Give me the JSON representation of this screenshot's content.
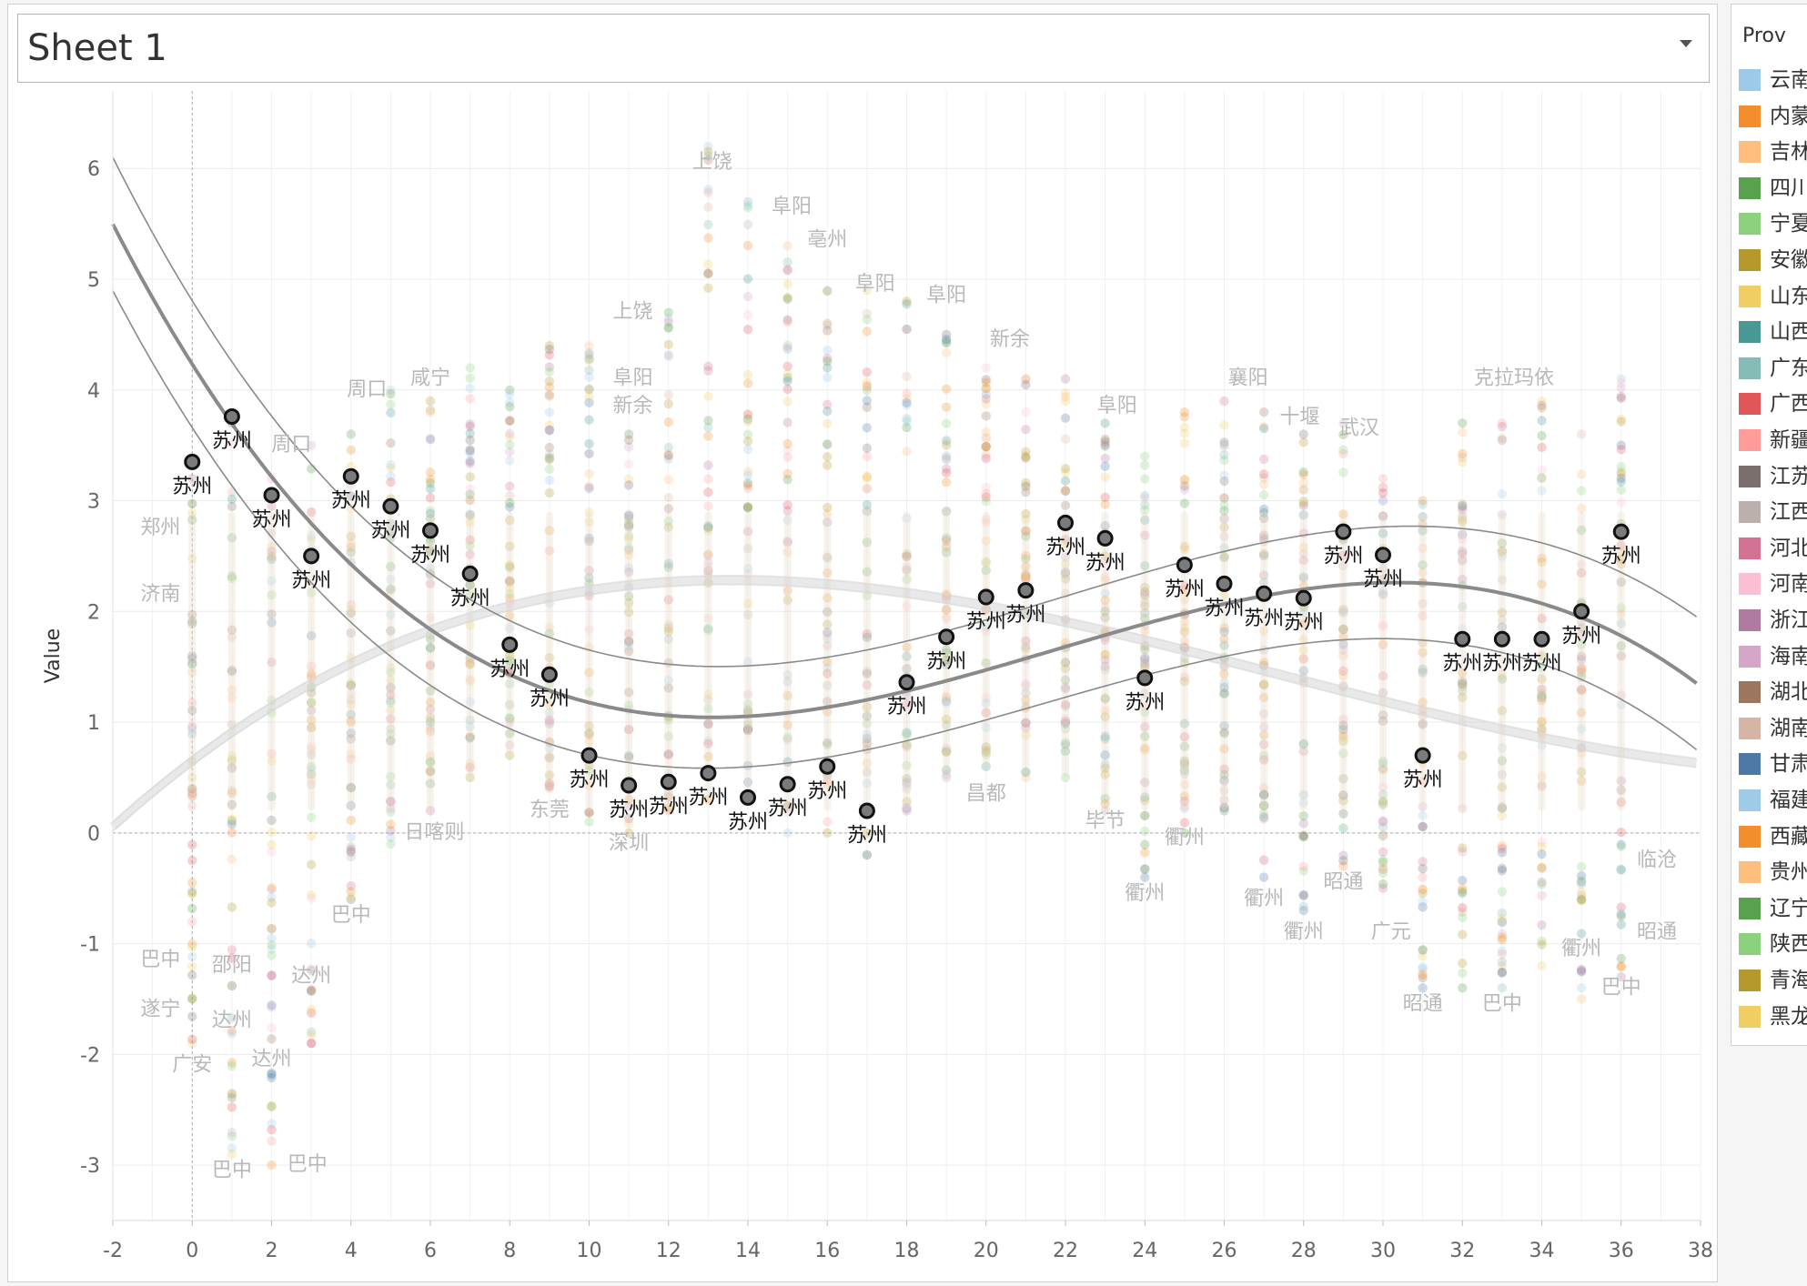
{
  "sheet": {
    "title": "Sheet 1"
  },
  "legend": {
    "title": "Prov",
    "items": [
      {
        "label": "云南",
        "color": "#9ecae9"
      },
      {
        "label": "内蒙",
        "color": "#f28e2b"
      },
      {
        "label": "吉林",
        "color": "#ffbe7d"
      },
      {
        "label": "四川",
        "color": "#59a14f"
      },
      {
        "label": "宁夏",
        "color": "#8cd17d"
      },
      {
        "label": "安徽",
        "color": "#b6992d"
      },
      {
        "label": "山东",
        "color": "#f1ce63"
      },
      {
        "label": "山西",
        "color": "#499894"
      },
      {
        "label": "广东",
        "color": "#86bcb6"
      },
      {
        "label": "广西",
        "color": "#e15759"
      },
      {
        "label": "新疆",
        "color": "#ff9d9a"
      },
      {
        "label": "江苏",
        "color": "#79706e"
      },
      {
        "label": "江西",
        "color": "#bab0ac"
      },
      {
        "label": "河北",
        "color": "#d37295"
      },
      {
        "label": "河南",
        "color": "#fabfd2"
      },
      {
        "label": "浙江",
        "color": "#b07aa1"
      },
      {
        "label": "海南",
        "color": "#d4a6c8"
      },
      {
        "label": "湖北",
        "color": "#9d7660"
      },
      {
        "label": "湖南",
        "color": "#d7b5a6"
      },
      {
        "label": "甘肃",
        "color": "#4e79a7"
      },
      {
        "label": "福建",
        "color": "#a0cbe8"
      },
      {
        "label": "西藏",
        "color": "#f28e2b"
      },
      {
        "label": "贵州",
        "color": "#ffbe7d"
      },
      {
        "label": "辽宁",
        "color": "#59a14f"
      },
      {
        "label": "陕西",
        "color": "#8cd17d"
      },
      {
        "label": "青海",
        "color": "#b6992d"
      },
      {
        "label": "黑龙",
        "color": "#f1ce63"
      }
    ]
  },
  "chart_data": {
    "type": "scatter",
    "title": "",
    "xlabel": "",
    "ylabel": "Value",
    "xlim": [
      -2,
      38
    ],
    "ylim": [
      -3.5,
      6.7
    ],
    "x_ticks": [
      -2,
      0,
      2,
      4,
      6,
      8,
      10,
      12,
      14,
      16,
      18,
      20,
      22,
      24,
      26,
      28,
      30,
      32,
      34,
      36,
      38
    ],
    "y_ticks": [
      -3,
      -2,
      -1,
      0,
      1,
      2,
      3,
      4,
      5,
      6
    ],
    "grid": true,
    "legend_placement": "right",
    "highlight_series": {
      "name": "苏州",
      "point_label": "苏州",
      "points": [
        [
          0,
          3.35
        ],
        [
          1,
          3.76
        ],
        [
          2,
          3.05
        ],
        [
          3,
          2.5
        ],
        [
          4,
          3.22
        ],
        [
          5,
          2.95
        ],
        [
          6,
          2.73
        ],
        [
          7,
          2.34
        ],
        [
          8,
          1.7
        ],
        [
          9,
          1.43
        ],
        [
          10,
          0.7
        ],
        [
          11,
          0.43
        ],
        [
          12,
          0.46
        ],
        [
          13,
          0.54
        ],
        [
          14,
          0.32
        ],
        [
          15,
          0.44
        ],
        [
          16,
          0.6
        ],
        [
          17,
          0.2
        ],
        [
          18,
          1.36
        ],
        [
          19,
          1.77
        ],
        [
          20,
          2.13
        ],
        [
          21,
          2.19
        ],
        [
          22,
          2.8
        ],
        [
          23,
          2.66
        ],
        [
          24,
          1.4
        ],
        [
          25,
          2.42
        ],
        [
          26,
          2.25
        ],
        [
          27,
          2.16
        ],
        [
          28,
          2.12
        ],
        [
          29,
          2.72
        ],
        [
          30,
          2.51
        ],
        [
          31,
          0.7
        ],
        [
          32,
          1.75
        ],
        [
          33,
          1.75
        ],
        [
          34,
          1.75
        ],
        [
          35,
          2.0
        ],
        [
          36,
          2.72
        ]
      ]
    },
    "background_columns": {
      "x": [
        0,
        1,
        2,
        3,
        4,
        5,
        6,
        7,
        8,
        9,
        10,
        11,
        12,
        13,
        14,
        15,
        16,
        17,
        18,
        19,
        20,
        21,
        22,
        23,
        24,
        25,
        26,
        27,
        28,
        29,
        30,
        31,
        32,
        33,
        34,
        35,
        36
      ],
      "y_min": [
        -1.9,
        -2.9,
        -3.0,
        -1.9,
        -0.6,
        -0.1,
        0.2,
        0.5,
        0.7,
        0.4,
        0.1,
        0.0,
        0.2,
        0.3,
        0.3,
        0.0,
        0.0,
        -0.2,
        0.2,
        0.5,
        0.6,
        0.5,
        0.5,
        0.2,
        -0.4,
        0.0,
        0.2,
        -0.4,
        -0.7,
        -0.3,
        -0.5,
        -1.4,
        -1.4,
        -1.4,
        -1.2,
        -1.5,
        -1.3
      ],
      "y_max": [
        3.2,
        3.7,
        3.2,
        3.5,
        3.6,
        4.0,
        3.9,
        4.2,
        4.0,
        4.4,
        4.4,
        3.6,
        4.7,
        6.2,
        5.7,
        5.3,
        4.9,
        4.9,
        4.8,
        4.5,
        4.2,
        4.1,
        4.1,
        3.7,
        3.4,
        3.8,
        3.9,
        3.8,
        3.6,
        3.7,
        3.2,
        3.0,
        3.7,
        3.7,
        3.9,
        3.6,
        4.1
      ]
    },
    "annotations": [
      {
        "text": "上饶",
        "x": 13.1,
        "y": 6.0
      },
      {
        "text": "阜阳",
        "x": 15.1,
        "y": 5.6
      },
      {
        "text": "亳州",
        "x": 16.0,
        "y": 5.3
      },
      {
        "text": "阜阳",
        "x": 17.2,
        "y": 4.9
      },
      {
        "text": "阜阳",
        "x": 19.0,
        "y": 4.8
      },
      {
        "text": "上饶",
        "x": 11.1,
        "y": 4.65
      },
      {
        "text": "新余",
        "x": 20.6,
        "y": 4.4
      },
      {
        "text": "阜阳",
        "x": 11.1,
        "y": 4.05
      },
      {
        "text": "新余",
        "x": 11.1,
        "y": 3.8
      },
      {
        "text": "周口",
        "x": 4.4,
        "y": 3.95
      },
      {
        "text": "咸宁",
        "x": 6.0,
        "y": 4.05
      },
      {
        "text": "周口",
        "x": 2.5,
        "y": 3.45
      },
      {
        "text": "阜阳",
        "x": 23.3,
        "y": 3.8
      },
      {
        "text": "襄阳",
        "x": 26.6,
        "y": 4.05
      },
      {
        "text": "十堰",
        "x": 27.9,
        "y": 3.7
      },
      {
        "text": "武汉",
        "x": 29.4,
        "y": 3.6
      },
      {
        "text": "克拉玛依",
        "x": 33.3,
        "y": 4.05
      },
      {
        "text": "郑州",
        "x": -0.8,
        "y": 2.7
      },
      {
        "text": "济南",
        "x": -0.8,
        "y": 2.1
      },
      {
        "text": "日喀则",
        "x": 6.1,
        "y": -0.05
      },
      {
        "text": "东莞",
        "x": 9.0,
        "y": 0.15
      },
      {
        "text": "深圳",
        "x": 11.0,
        "y": -0.15
      },
      {
        "text": "昌都",
        "x": 20.0,
        "y": 0.3
      },
      {
        "text": "毕节",
        "x": 23.0,
        "y": 0.05
      },
      {
        "text": "衢州",
        "x": 25.0,
        "y": -0.1
      },
      {
        "text": "衢州",
        "x": 24.0,
        "y": -0.6
      },
      {
        "text": "衢州",
        "x": 27.0,
        "y": -0.65
      },
      {
        "text": "衢州",
        "x": 28.0,
        "y": -0.95
      },
      {
        "text": "昭通",
        "x": 29.0,
        "y": -0.5
      },
      {
        "text": "广元",
        "x": 30.2,
        "y": -0.95
      },
      {
        "text": "临沧",
        "x": 36.9,
        "y": -0.3
      },
      {
        "text": "昭通",
        "x": 36.9,
        "y": -0.95
      },
      {
        "text": "衢州",
        "x": 35.0,
        "y": -1.1
      },
      {
        "text": "巴中",
        "x": 36.0,
        "y": -1.45
      },
      {
        "text": "昭通",
        "x": 31.0,
        "y": -1.6
      },
      {
        "text": "巴中",
        "x": 33.0,
        "y": -1.6
      },
      {
        "text": "巴中",
        "x": 4.0,
        "y": -0.8
      },
      {
        "text": "巴中",
        "x": -0.8,
        "y": -1.2
      },
      {
        "text": "邵阳",
        "x": 1.0,
        "y": -1.25
      },
      {
        "text": "达州",
        "x": 3.0,
        "y": -1.35
      },
      {
        "text": "遂宁",
        "x": -0.8,
        "y": -1.65
      },
      {
        "text": "达州",
        "x": 1.0,
        "y": -1.75
      },
      {
        "text": "广安",
        "x": 0.0,
        "y": -2.15
      },
      {
        "text": "达州",
        "x": 2.0,
        "y": -2.1
      },
      {
        "text": "巴中",
        "x": 1.0,
        "y": -3.1
      },
      {
        "text": "巴中",
        "x": 2.9,
        "y": -3.05
      }
    ]
  }
}
